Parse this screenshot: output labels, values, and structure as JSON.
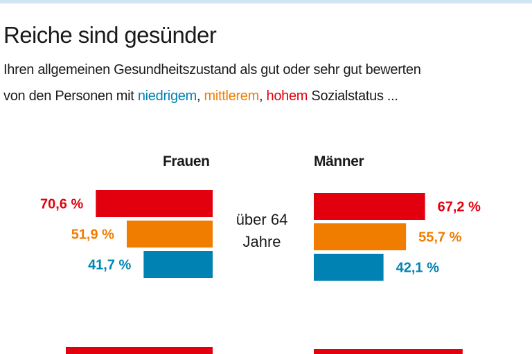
{
  "title": "Reiche sind gesünder",
  "subtitle": {
    "line1": "Ihren allgemeinen Gesundheitszustand als gut oder sehr gut bewerten",
    "line2_prefix": "von den Personen mit ",
    "low": "niedrigem",
    "sep1": ", ",
    "mid": "mittlerem",
    "sep2": ", ",
    "high": "hohem",
    "line2_suffix": " Sozialstatus ..."
  },
  "colors": {
    "high": "#e2000f",
    "mid": "#f07d00",
    "low": "#0083b3"
  },
  "chart_data": {
    "type": "bar",
    "orientation": "horizontal",
    "panels": [
      "Frauen",
      "Männer"
    ],
    "series_colors": [
      "#e2000f",
      "#f07d00",
      "#0083b3"
    ],
    "groups": [
      {
        "label_line1": "über 64",
        "label_line2": "Jahre",
        "Frauen": [
          {
            "status": "high",
            "value": 70.6,
            "label": "70,6 %"
          },
          {
            "status": "mid",
            "value": 51.9,
            "label": "51,9 %"
          },
          {
            "status": "low",
            "value": 41.7,
            "label": "41,7 %"
          }
        ],
        "Männer": [
          {
            "status": "high",
            "value": 67.2,
            "label": "67,2 %"
          },
          {
            "status": "mid",
            "value": 55.7,
            "label": "55,7 %"
          },
          {
            "status": "low",
            "value": 42.1,
            "label": "42,1 %"
          }
        ]
      },
      {
        "partially_visible": true,
        "Frauen": [
          {
            "status": "high",
            "value": 88.7
          }
        ],
        "Männer": [
          {
            "status": "high",
            "value": 89.9
          }
        ]
      }
    ]
  }
}
